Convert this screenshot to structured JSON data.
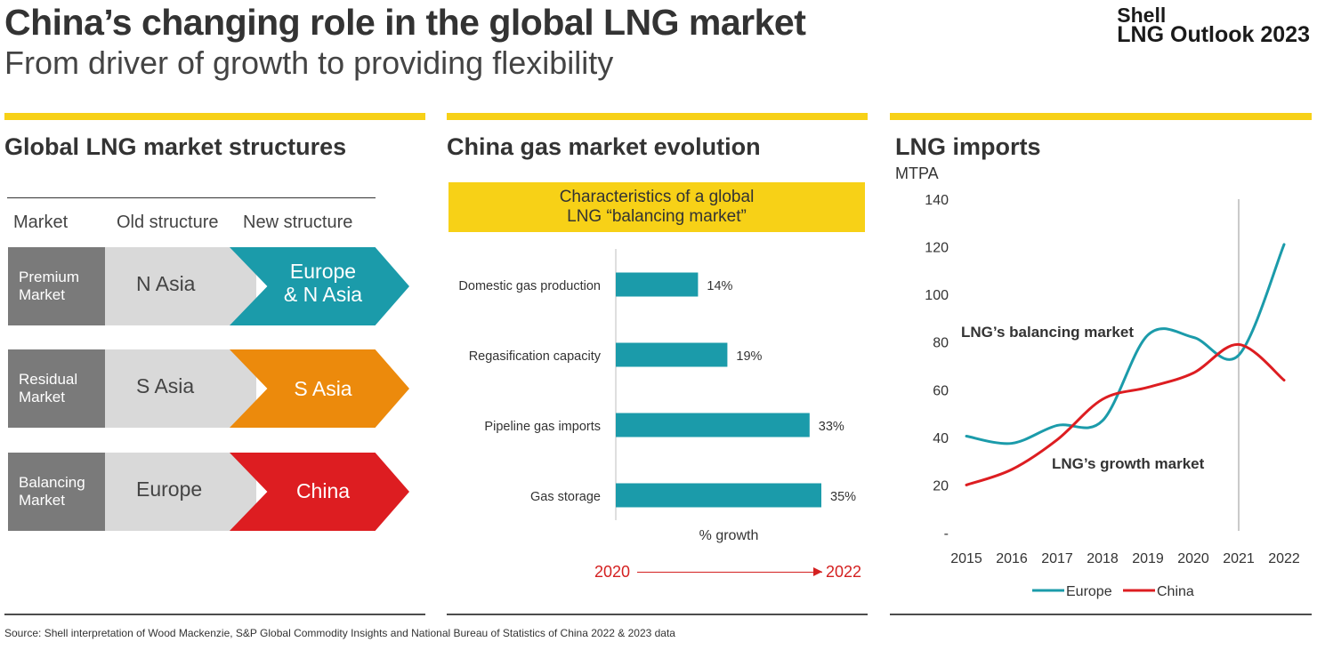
{
  "header": {
    "title": "China’s changing role in the global LNG market",
    "subtitle": "From driver of growth to providing flexibility",
    "brand_line1": "Shell",
    "brand_line2": "LNG Outlook 2023"
  },
  "colors": {
    "yellow": "#F7D117",
    "teal": "#1B9BAA",
    "orange": "#EC8A0C",
    "red": "#DD1D21",
    "dark_gray": "#7a7a7a",
    "light_gray": "#d9d9d9",
    "text": "#333333"
  },
  "panel1": {
    "title": "Global LNG market structures",
    "headers": {
      "market": "Market",
      "old": "Old structure",
      "new": "New structure"
    },
    "rows": [
      {
        "market_l1": "Premium",
        "market_l2": "Market",
        "old": "N Asia",
        "new_l1": "Europe",
        "new_l2": "& N Asia",
        "color": "#1B9BAA"
      },
      {
        "market_l1": "Residual",
        "market_l2": "Market",
        "old": "S Asia",
        "new_l1": "S Asia",
        "new_l2": "",
        "color": "#EC8A0C"
      },
      {
        "market_l1": "Balancing",
        "market_l2": "Market",
        "old": "Europe",
        "new_l1": "China",
        "new_l2": "",
        "color": "#DD1D21"
      }
    ]
  },
  "panel2": {
    "title": "China gas market evolution",
    "box_line1": "Characteristics of a global",
    "box_line2": "LNG “balancing market”",
    "axis_label": "% growth",
    "year_start": "2020",
    "year_end": "2022"
  },
  "panel3": {
    "title": "LNG imports",
    "units": "MTPA",
    "annotation_balancing": "LNG’s balancing market",
    "annotation_growth": "LNG’s growth market"
  },
  "chart_data": [
    {
      "type": "bar",
      "orientation": "horizontal",
      "title": "China gas market evolution",
      "categories": [
        "Domestic gas production",
        "Regasification capacity",
        "Pipeline gas imports",
        "Gas storage"
      ],
      "values": [
        14,
        19,
        33,
        35
      ],
      "value_labels": [
        "14%",
        "19%",
        "33%",
        "35%"
      ],
      "xlabel": "% growth",
      "xlim": [
        0,
        40
      ],
      "color": "#1B9BAA"
    },
    {
      "type": "line",
      "title": "LNG imports",
      "ylabel": "MTPA",
      "x": [
        "2015",
        "2016",
        "2017",
        "2018",
        "2019",
        "2020",
        "2021",
        "2022"
      ],
      "series": [
        {
          "name": "Europe",
          "color": "#1B9BAA",
          "values": [
            40.5,
            37.5,
            45,
            47,
            83,
            82,
            74.5,
            121
          ]
        },
        {
          "name": "China",
          "color": "#DD1D21",
          "values": [
            20,
            26.5,
            39,
            56,
            61,
            67,
            79,
            64
          ]
        }
      ],
      "ylim": [
        0,
        140
      ],
      "yticks": [
        "-",
        "20",
        "40",
        "60",
        "80",
        "100",
        "120",
        "140"
      ],
      "marker_year": "2021",
      "legend_position": "bottom"
    }
  ],
  "source": "Source: Shell interpretation of Wood Mackenzie, S&P Global Commodity Insights and National Bureau of Statistics of China 2022 & 2023 data"
}
